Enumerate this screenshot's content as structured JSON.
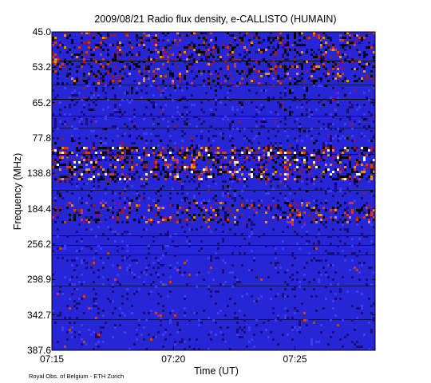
{
  "chart_data": {
    "type": "heatmap",
    "title": "2009/08/21  Radio flux density, e-CALLISTO (HUMAIN)",
    "xlabel": "Time (UT)",
    "ylabel": "Frequency (MHz)",
    "credit": "Royal Obs. of Belgium - ETH Zurich",
    "y_ticks": [
      "45.0",
      "53.2",
      "65.2",
      "77.8",
      "138.8",
      "184.4",
      "256.2",
      "298.9",
      "342.7",
      "387.6"
    ],
    "x_ticks": [
      "07:15",
      "07:20",
      "07:25"
    ],
    "x_tick_minutes": [
      0,
      5,
      10
    ],
    "x_range_minutes": [
      0,
      13.3
    ],
    "colormap": [
      "#000000",
      "#1a0f7a",
      "#2222c8",
      "#3b3bf0",
      "#8a1a4a",
      "#d43a1a",
      "#f08a1a",
      "#ffffff"
    ],
    "bands": [
      {
        "y_from": 0.0,
        "y_to": 0.16,
        "level": "high"
      },
      {
        "y_from": 0.36,
        "y_to": 0.46,
        "level": "very-high"
      },
      {
        "y_from": 0.53,
        "y_to": 0.6,
        "level": "high"
      },
      {
        "y_from": 0.6,
        "y_to": 1.0,
        "level": "low"
      }
    ]
  }
}
